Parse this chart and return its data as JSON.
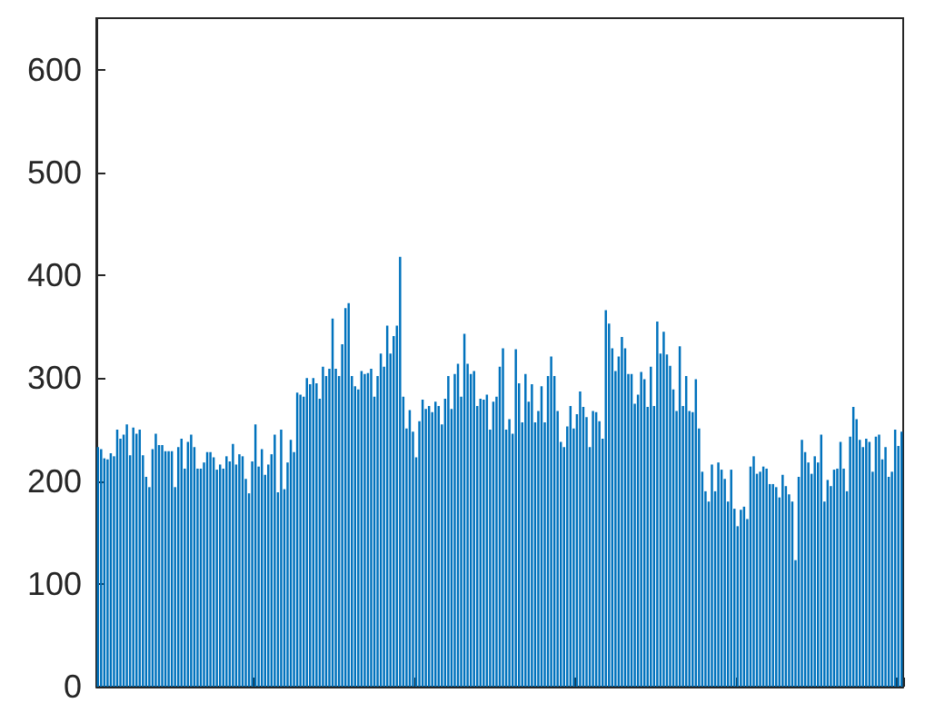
{
  "chart_data": {
    "type": "bar",
    "color": "#0072bd",
    "ylim": [
      0,
      650
    ],
    "yticks": [
      0,
      100,
      200,
      300,
      400,
      500,
      600
    ],
    "grid": false,
    "tick_labels": "y",
    "categories": [
      null,
      null,
      null,
      null,
      null,
      null,
      null,
      null,
      null,
      null,
      null,
      null,
      null,
      null,
      null,
      null,
      null,
      null,
      null,
      null,
      null,
      null,
      null,
      null,
      null,
      null,
      null,
      null,
      null,
      null,
      null,
      null,
      null,
      null,
      null,
      null,
      null,
      null,
      null,
      null,
      null,
      null,
      null,
      null,
      null,
      null,
      null,
      null,
      null,
      null,
      null,
      null,
      null,
      null,
      null,
      null,
      null,
      null,
      null,
      null,
      null,
      null,
      null,
      null,
      null,
      null,
      null,
      null,
      null,
      null,
      null,
      null,
      null,
      null,
      null,
      null,
      null,
      null,
      null,
      null,
      null,
      null,
      null,
      null,
      null,
      null,
      null,
      null,
      null,
      null,
      null,
      null,
      null,
      null,
      null,
      null,
      null,
      null,
      null,
      null,
      null,
      null,
      null,
      null,
      null,
      null,
      null,
      null,
      null,
      null,
      null,
      null,
      null,
      null,
      null,
      null,
      null,
      null,
      null,
      null,
      null,
      null,
      null,
      null,
      null,
      null,
      null,
      null,
      null,
      null,
      null,
      null,
      null,
      null,
      null,
      null,
      null,
      null,
      null,
      null,
      null,
      null,
      null,
      null,
      null,
      null,
      null,
      null,
      null,
      null,
      null,
      null,
      null,
      null,
      null,
      null,
      null,
      null,
      null,
      null,
      null,
      null,
      null,
      null,
      null,
      null,
      null,
      null,
      null,
      null,
      null,
      null,
      null,
      null,
      null,
      null,
      null,
      null,
      null,
      null,
      null,
      null,
      null,
      null,
      null,
      null,
      null,
      null,
      null,
      null,
      null,
      null,
      null,
      null,
      null,
      null,
      null,
      null,
      null,
      null,
      null,
      null,
      null,
      null,
      null,
      null,
      null,
      null,
      null,
      null,
      null,
      null,
      null,
      null,
      null,
      null,
      null,
      null,
      null,
      null,
      null,
      null,
      null,
      null,
      null,
      null,
      null,
      null,
      null,
      null,
      null,
      null,
      null,
      null,
      null,
      null,
      null,
      null,
      null,
      null,
      null,
      null,
      null,
      null,
      null,
      null,
      null,
      null,
      null,
      null,
      null
    ],
    "values": [
      233,
      231,
      222,
      221,
      227,
      224,
      250,
      241,
      245,
      255,
      225,
      252,
      246,
      250,
      225,
      204,
      194,
      231,
      246,
      235,
      235,
      229,
      229,
      229,
      194,
      233,
      241,
      212,
      238,
      245,
      233,
      212,
      212,
      218,
      228,
      228,
      223,
      211,
      216,
      212,
      224,
      219,
      236,
      216,
      226,
      224,
      202,
      188,
      219,
      255,
      214,
      231,
      206,
      216,
      226,
      245,
      189,
      250,
      192,
      218,
      240,
      228,
      286,
      284,
      282,
      300,
      294,
      300,
      295,
      280,
      311,
      302,
      309,
      358,
      309,
      302,
      333,
      368,
      373,
      302,
      292,
      289,
      307,
      304,
      305,
      309,
      282,
      302,
      324,
      311,
      351,
      324,
      341,
      351,
      418,
      282,
      251,
      269,
      248,
      223,
      258,
      279,
      270,
      273,
      267,
      277,
      273,
      255,
      280,
      302,
      270,
      304,
      314,
      282,
      343,
      314,
      304,
      307,
      273,
      280,
      279,
      284,
      250,
      277,
      282,
      311,
      329,
      250,
      260,
      246,
      328,
      295,
      257,
      304,
      277,
      294,
      257,
      268,
      292,
      257,
      302,
      321,
      302,
      268,
      238,
      233,
      253,
      273,
      251,
      265,
      287,
      272,
      262,
      233,
      268,
      267,
      258,
      241,
      366,
      353,
      329,
      307,
      321,
      340,
      329,
      304,
      304,
      275,
      284,
      306,
      299,
      272,
      311,
      273,
      355,
      324,
      345,
      323,
      312,
      289,
      268,
      331,
      273,
      302,
      268,
      267,
      299,
      251,
      209,
      190,
      180,
      216,
      190,
      218,
      211,
      202,
      180,
      211,
      173,
      156,
      172,
      175,
      163,
      214,
      224,
      207,
      209,
      214,
      212,
      197,
      197,
      194,
      184,
      206,
      195,
      187,
      180,
      123,
      204,
      240,
      228,
      218,
      207,
      224,
      218,
      245,
      180,
      201,
      195,
      211,
      212,
      238,
      212,
      190,
      243,
      272,
      260,
      240,
      233,
      241,
      238,
      209,
      243,
      245,
      221,
      233,
      204,
      209,
      250,
      234,
      248
    ]
  }
}
